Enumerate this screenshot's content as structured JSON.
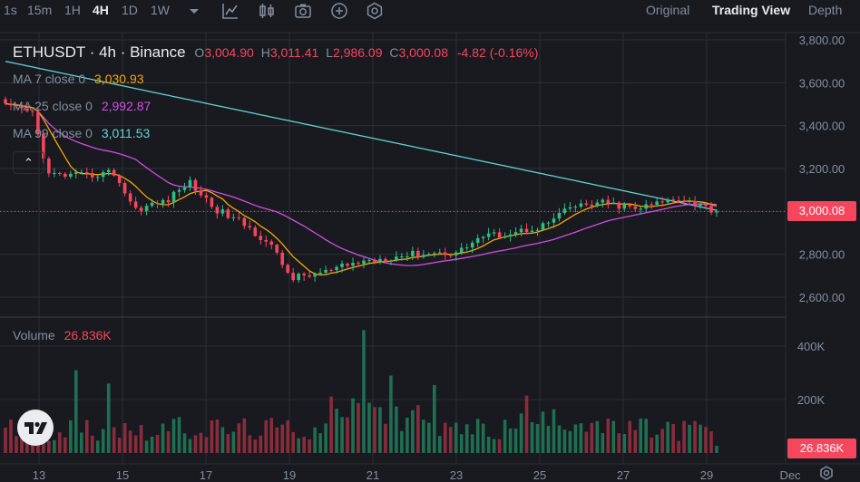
{
  "toolbar": {
    "intervals": [
      "1s",
      "15m",
      "1H",
      "4H",
      "1D",
      "1W"
    ],
    "active_interval": "4H",
    "tools": [
      "chevron-down-icon",
      "indicators-icon",
      "candle-style-icon",
      "screenshot-icon",
      "add-icon",
      "settings-icon"
    ],
    "views": [
      "Original",
      "Trading View",
      "Depth"
    ],
    "active_view": "Trading View"
  },
  "legend": {
    "symbol": "ETHUSDT · 4h · Binance",
    "o_label": "O",
    "o_value": "3,004.90",
    "h_label": "H",
    "h_value": "3,011.41",
    "l_label": "L",
    "l_value": "2,986.09",
    "c_label": "C",
    "c_value": "3,000.08",
    "change": "-4.82 (-0.16%)",
    "ma": [
      {
        "label": "MA 7 close 0",
        "value": "3,030.93",
        "color": "#f7a600"
      },
      {
        "label": "MA 25 close 0",
        "value": "2,992.87",
        "color": "#d24fe0"
      },
      {
        "label": "MA 99 close 0",
        "value": "3,011.53",
        "color": "#62d6d0"
      }
    ],
    "collapse_glyph": "⌃",
    "volume_label": "Volume",
    "volume_value": "26.836K"
  },
  "colors": {
    "bg": "#181a20",
    "grid": "#2b2f36",
    "text": "#848e9c",
    "text_strong": "#eaecef",
    "up": "#2ebd85",
    "down": "#f6465d",
    "vol_up": "#1f6f52",
    "vol_down": "#8a2c3b",
    "ma7": "#f7a600",
    "ma25": "#d24fe0",
    "ma99": "#62d6d0"
  },
  "chart_data": {
    "type": "candlestick",
    "price_axis_ticks": [
      "3,800.00",
      "3,600.00",
      "3,400.00",
      "3,200.00",
      "3,000.00",
      "2,800.00",
      "2,600.00"
    ],
    "price_range": [
      2600,
      3800
    ],
    "last_price_label": "3,000.08",
    "last_price": 3000.08,
    "volume_axis_ticks": [
      "400K",
      "200K"
    ],
    "volume_range": [
      0,
      400000
    ],
    "last_volume_label": "26.836K",
    "x_ticks": [
      "13",
      "15",
      "17",
      "19",
      "21",
      "23",
      "25",
      "27",
      "29",
      "Dec"
    ],
    "candles": [],
    "volumes": []
  },
  "footer": {
    "settings_icon": "gear-icon"
  }
}
